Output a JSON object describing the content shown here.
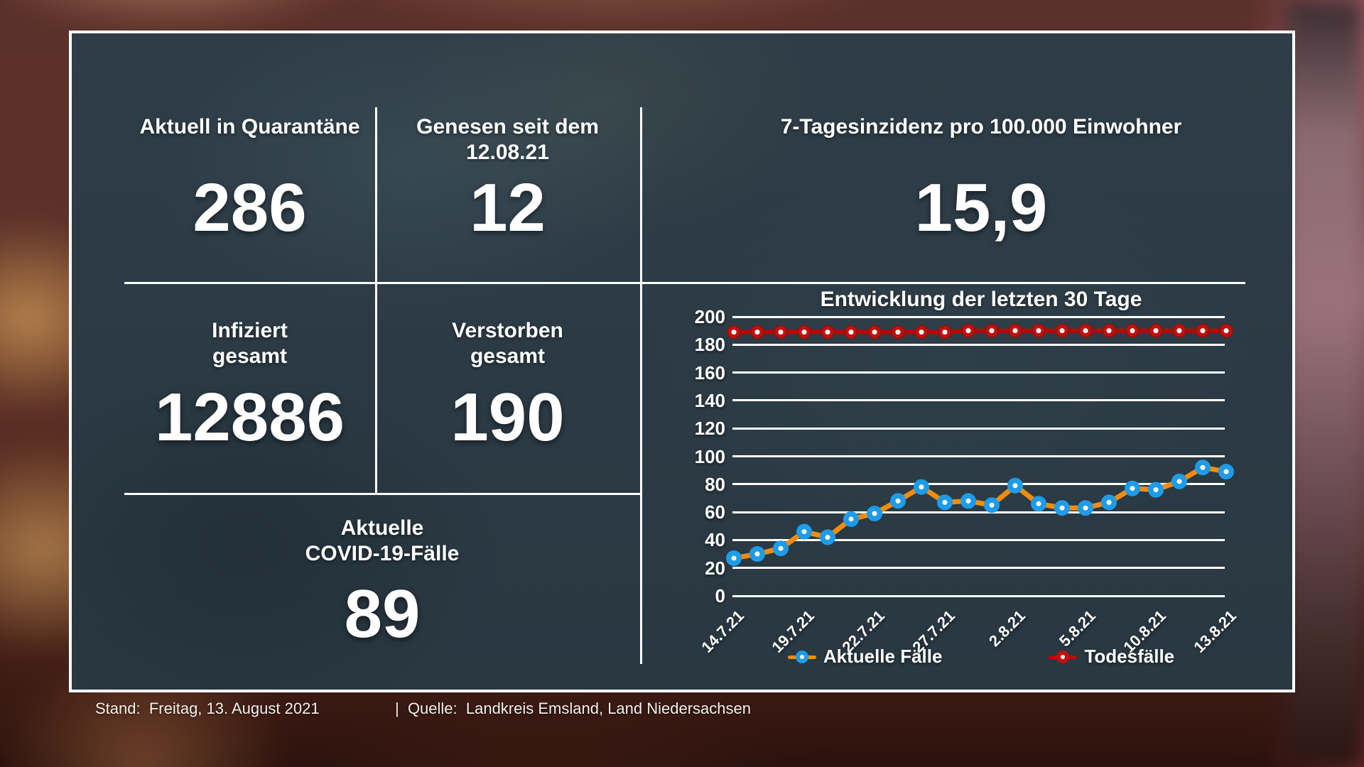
{
  "cards": {
    "quarantine": {
      "label": "Aktuell in Quarantäne",
      "value": "286"
    },
    "recovered": {
      "label_line1": "Genesen seit dem",
      "label_line2": "12.08.21",
      "value": "12"
    },
    "incidence": {
      "label": "7-Tagesinzidenz pro 100.000 Einwohner",
      "value": "15,9"
    },
    "infected": {
      "label_line1": "Infiziert",
      "label_line2": "gesamt",
      "value": "12886"
    },
    "deceased": {
      "label_line1": "Verstorben",
      "label_line2": "gesamt",
      "value": "190"
    },
    "active": {
      "label_line1": "Aktuelle",
      "label_line2": "COVID-19-Fälle",
      "value": "89"
    }
  },
  "chart_data": {
    "type": "line",
    "title": "Entwicklung der letzten 30 Tage",
    "ylim": [
      0,
      200
    ],
    "y_ticks": [
      0,
      20,
      40,
      60,
      80,
      100,
      120,
      140,
      160,
      180,
      200
    ],
    "grid": true,
    "legend_position": "bottom",
    "x_ticks": [
      {
        "index": 0,
        "label": "14.7.21"
      },
      {
        "index": 3,
        "label": "19.7.21"
      },
      {
        "index": 6,
        "label": "22.7.21"
      },
      {
        "index": 9,
        "label": "27.7.21"
      },
      {
        "index": 12,
        "label": "2.8.21"
      },
      {
        "index": 15,
        "label": "5.8.21"
      },
      {
        "index": 18,
        "label": "10.8.21"
      },
      {
        "index": 21,
        "label": "13.8.21"
      }
    ],
    "series": [
      {
        "name": "Todesfälle",
        "line_color": "#C00000",
        "marker_color": "#C21010",
        "marker_ring": "#8E150C",
        "values": [
          189,
          189,
          189,
          189,
          189,
          189,
          189,
          189,
          189,
          189,
          190,
          190,
          190,
          190,
          190,
          190,
          190,
          190,
          190,
          190,
          190,
          190
        ]
      },
      {
        "name": "Aktuelle Fälle",
        "line_color": "#F28C0C",
        "marker_color": "#1E9BE9",
        "marker_ring": "#1E9BE9",
        "values": [
          27,
          30,
          34,
          46,
          42,
          55,
          59,
          68,
          78,
          67,
          68,
          65,
          79,
          66,
          63,
          63,
          67,
          77,
          76,
          82,
          92,
          89
        ]
      }
    ]
  },
  "footer": {
    "stand": "Stand:  Freitag, 13. August 2021",
    "quelle": "|  Quelle:  Landkreis Emsland, Land Niedersachsen"
  },
  "colors": {
    "grid": "#ffffff",
    "panel_border": "#ffffff",
    "text": "#ffffff"
  }
}
